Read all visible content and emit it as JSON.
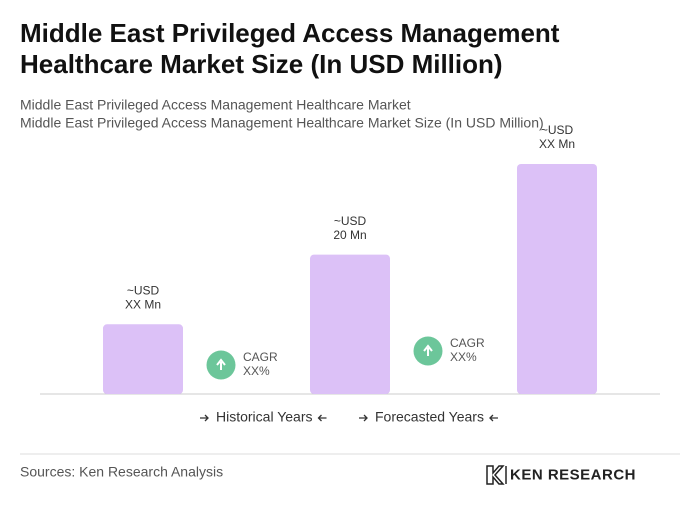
{
  "chart_data": {
    "type": "bar",
    "title": [
      "Middle East Privileged Access Management",
      "Healthcare Market Size (In USD Million)"
    ],
    "subtitle": [
      "Middle East Privileged Access Management Healthcare Market",
      "Middle East Privileged Access Management Healthcare Market Size (In USD Million)"
    ],
    "values": [
      10,
      20,
      33
    ],
    "value_labels": [
      [
        "~USD",
        "XX Mn"
      ],
      [
        "~USD",
        "20 Mn"
      ],
      [
        "~USD",
        "XX Mn"
      ]
    ],
    "color": "#dcc1f7",
    "annotations": [
      [
        "CAGR",
        "XX%"
      ],
      [
        "CAGR",
        "XX%"
      ]
    ],
    "legend": [
      "Historical Years",
      "Forecasted Years"
    ],
    "source": "Sources: Ken Research Analysis",
    "logo": "KEN RESEARCH"
  }
}
